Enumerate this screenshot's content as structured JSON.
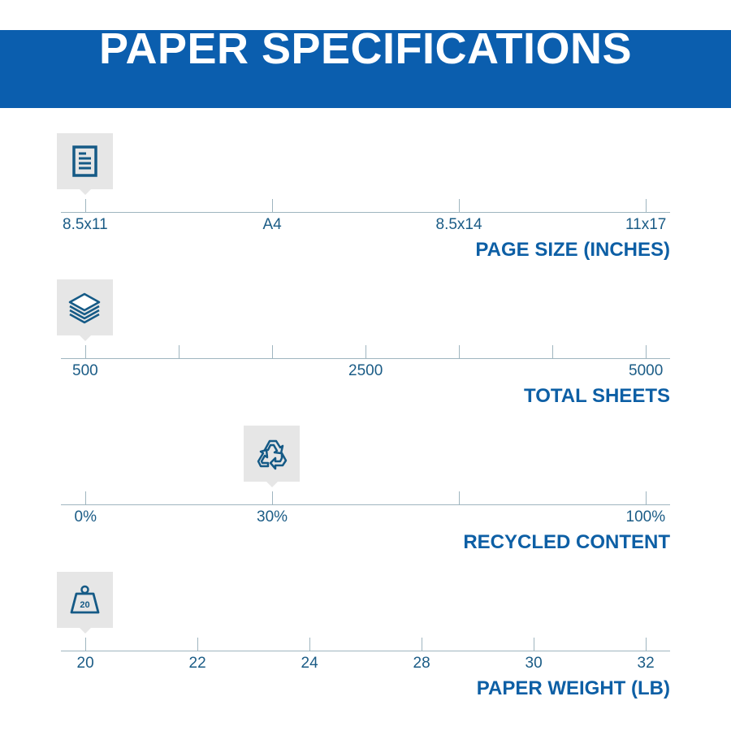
{
  "header": {
    "title": "PAPER SPECIFICATIONS"
  },
  "colors": {
    "header_bg": "#0b5eae",
    "title_text": "#0d5fa5",
    "label_text": "#1b5c86",
    "icon_box": "#e6e6e6",
    "icon": "#155a86"
  },
  "specs": [
    {
      "title": "PAGE SIZE (INCHES)",
      "icon": "document-icon",
      "ticks": 4,
      "labels": [
        "8.5x11",
        "A4",
        "8.5x14",
        "11x17"
      ],
      "label_ticks": [
        0,
        1,
        2,
        3
      ],
      "selected": "8.5x11"
    },
    {
      "title": "TOTAL SHEETS",
      "icon": "paper-stack-icon",
      "ticks": 7,
      "labels": [
        "500",
        "2500",
        "5000"
      ],
      "label_ticks": [
        0,
        3,
        6
      ],
      "selected": "500"
    },
    {
      "title": "RECYCLED CONTENT",
      "icon": "recycle-icon",
      "ticks": 4,
      "labels": [
        "0%",
        "30%",
        "100%"
      ],
      "label_ticks": [
        0,
        1,
        3
      ],
      "selected": "30%"
    },
    {
      "title": "PAPER WEIGHT (LB)",
      "icon": "weight-icon",
      "icon_text": "20",
      "ticks": 6,
      "labels": [
        "20",
        "22",
        "24",
        "28",
        "30",
        "32"
      ],
      "label_ticks": [
        0,
        1,
        2,
        3,
        4,
        5
      ],
      "selected": "20"
    }
  ]
}
